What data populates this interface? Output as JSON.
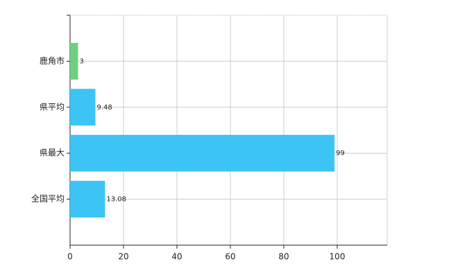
{
  "chart_data": {
    "type": "hbar",
    "categories": [
      "鹿角市",
      "県平均",
      "県最大",
      "全国平均"
    ],
    "values": [
      3,
      9.48,
      99,
      13.08
    ],
    "colors": [
      "#6fcf7f",
      "#3cc4f4",
      "#3cc4f4",
      "#3cc4f4"
    ],
    "xlim": [
      0,
      118.7
    ],
    "xticks": [
      0,
      20,
      40,
      60,
      80,
      100
    ],
    "grid": true
  }
}
